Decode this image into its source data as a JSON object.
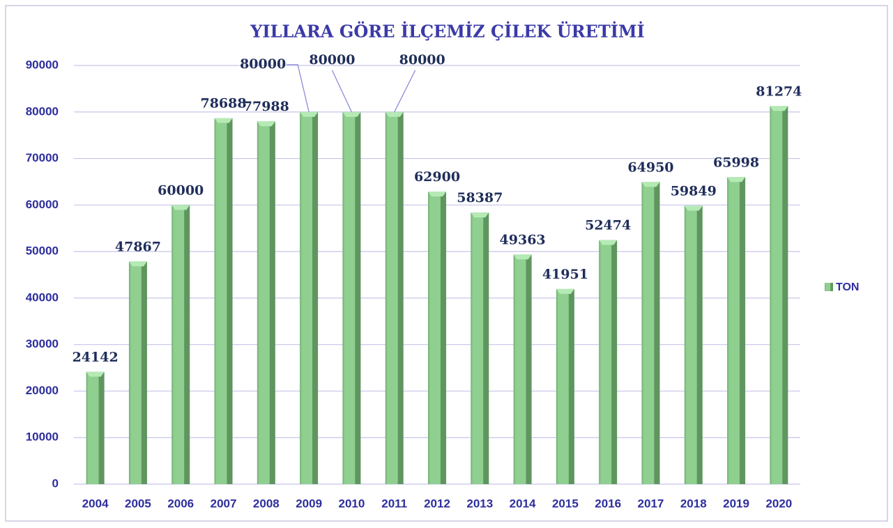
{
  "chart_data": {
    "type": "bar",
    "title": "YILLARA GÖRE İLÇEMİZ ÇİLEK ÜRETİMİ",
    "categories": [
      "2004",
      "2005",
      "2006",
      "2007",
      "2008",
      "2009",
      "2010",
      "2011",
      "2012",
      "2013",
      "2014",
      "2015",
      "2016",
      "2017",
      "2018",
      "2019",
      "2020"
    ],
    "series": [
      {
        "name": "TON",
        "color": "#8fcf8f",
        "values": [
          24142,
          47867,
          60000,
          78688,
          77988,
          80000,
          80000,
          80000,
          62900,
          58387,
          49363,
          41951,
          52474,
          64950,
          59849,
          65998,
          81274
        ]
      }
    ],
    "ylim": [
      0,
      90000
    ],
    "yticks": [
      0,
      10000,
      20000,
      30000,
      40000,
      50000,
      60000,
      70000,
      80000,
      90000
    ],
    "grid": true,
    "legend": "right"
  }
}
